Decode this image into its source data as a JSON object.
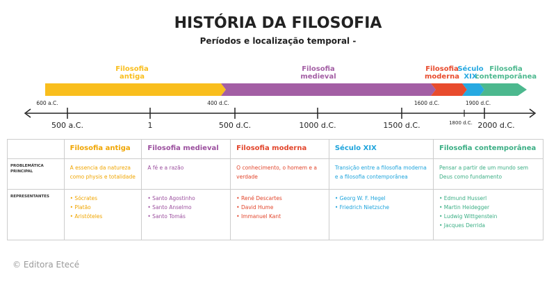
{
  "header": {
    "title": "HISTÓRIA DA FILOSOFIA",
    "subtitle": "Períodos e localização temporal -"
  },
  "timeline": {
    "periods": [
      {
        "label": [
          "Filosofia",
          "antiga"
        ],
        "color": "#f9be1d"
      },
      {
        "label": [
          "Filosofia",
          "medieval"
        ],
        "color": "#a35ea4"
      },
      {
        "label": [
          "Filosofia",
          "moderna"
        ],
        "color": "#e84b2d"
      },
      {
        "label": [
          "Século",
          "XIX"
        ],
        "color": "#27a9e1"
      },
      {
        "label": [
          "Filosofia",
          "contemporânea"
        ],
        "color": "#4cb88e"
      }
    ],
    "period_dates": [
      "600 a.C.",
      "400 d.C.",
      "1600 d.C.",
      "1900 d.C."
    ],
    "axis_labels": [
      "500 a.C.",
      "1",
      "500 d.C.",
      "1000 d.C.",
      "1500 d.C.",
      "2000 d.C."
    ],
    "minor_label": "1800 d.C."
  },
  "table": {
    "columns": [
      {
        "title": "Filosofia antiga",
        "color": "#f0a500"
      },
      {
        "title": "Filosofia medieval",
        "color": "#9b4f9e"
      },
      {
        "title": "Filosofia moderna",
        "color": "#e2452b"
      },
      {
        "title": "Século XIX",
        "color": "#1ea4dc"
      },
      {
        "title": "Filosofia contemporânea",
        "color": "#3aae84"
      }
    ],
    "rows": [
      {
        "label": "PROBLEMÁTICA PRINCIPAL",
        "cells": [
          [
            "A essencia da natureza como physis e totalidade"
          ],
          [
            "A fé e a razão"
          ],
          [
            "O conhecimento, o homem e a verdade"
          ],
          [
            "Transição entre a filosofia moderna e a filosofia contemporânea"
          ],
          [
            "Pensar a partir de um mundo sem Deus como fundamento"
          ]
        ]
      },
      {
        "label": "REPRESENTANTES",
        "cells": [
          [
            "• Sócrates",
            "• Platão",
            "• Aristóteles"
          ],
          [
            "• Santo Agostinho",
            "• Santo Anselmo",
            "• Santo Tomás"
          ],
          [
            "• René Descartes",
            "• David Hume",
            "• Immanuel Kant"
          ],
          [
            "• Georg W. F. Hegel",
            "• Friedrich Nietzsche"
          ],
          [
            "• Edmund Husserl",
            "• Martin Heidegger",
            "• Ludwig Wittgenstein",
            "• Jacques Derrida"
          ]
        ]
      }
    ]
  },
  "footer": "© Editora Etecé"
}
